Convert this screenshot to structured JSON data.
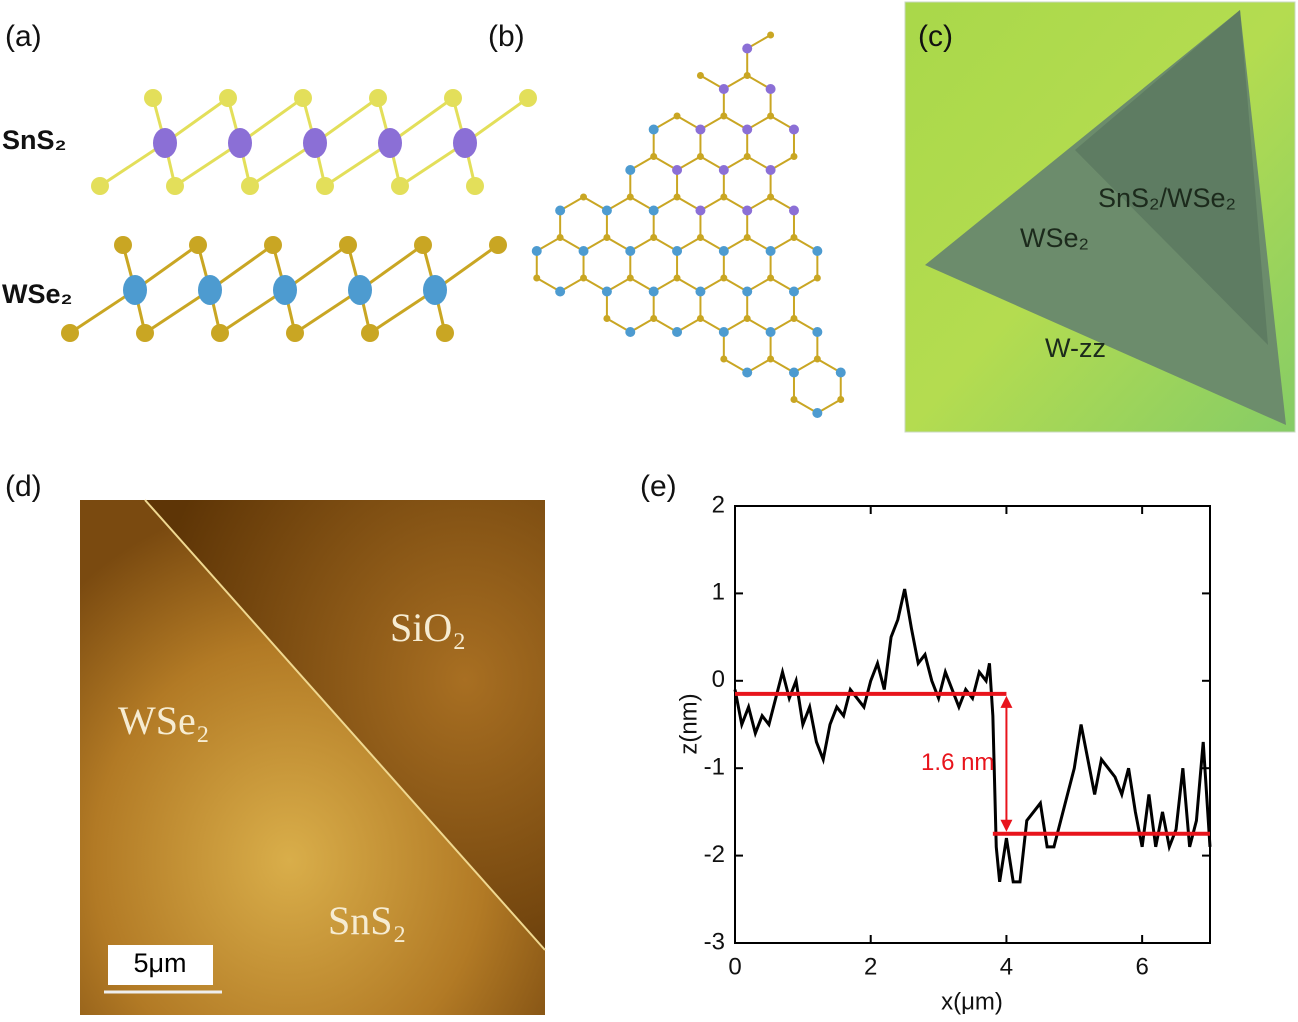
{
  "panels": {
    "a": {
      "label": "(a)",
      "top_layer": "SnS₂",
      "bottom_layer": "WSe₂"
    },
    "b": {
      "label": "(b)"
    },
    "c": {
      "label": "(c)",
      "heterostructure": "SnS₂/WSe₂",
      "monolayer": "WSe₂",
      "edge": "W-zz"
    },
    "d": {
      "label": "(d)",
      "substrate": "SiO₂",
      "left_region": "WSe₂",
      "right_region": "SnS₂",
      "scale_bar": "5μm"
    },
    "e": {
      "label": "(e)"
    }
  },
  "chart_data": {
    "type": "line",
    "color": "#000000",
    "xlabel": "x(μm)",
    "ylabel": "z(nm)",
    "x": [
      0,
      0.1,
      0.2,
      0.3,
      0.4,
      0.5,
      0.6,
      0.7,
      0.8,
      0.9,
      1.0,
      1.1,
      1.2,
      1.3,
      1.4,
      1.5,
      1.6,
      1.7,
      1.8,
      1.9,
      2.0,
      2.1,
      2.2,
      2.3,
      2.4,
      2.5,
      2.6,
      2.7,
      2.8,
      2.9,
      3.0,
      3.1,
      3.2,
      3.3,
      3.4,
      3.5,
      3.6,
      3.7,
      3.75,
      3.8,
      3.85,
      3.9,
      4.0,
      4.1,
      4.2,
      4.3,
      4.4,
      4.5,
      4.6,
      4.7,
      4.8,
      4.9,
      5.0,
      5.1,
      5.2,
      5.3,
      5.4,
      5.5,
      5.6,
      5.7,
      5.8,
      5.9,
      6.0,
      6.1,
      6.2,
      6.3,
      6.4,
      6.5,
      6.6,
      6.7,
      6.8,
      6.9,
      7.0
    ],
    "values": [
      -0.1,
      -0.5,
      -0.3,
      -0.6,
      -0.4,
      -0.5,
      -0.2,
      0.1,
      -0.2,
      0.0,
      -0.5,
      -0.3,
      -0.7,
      -0.9,
      -0.5,
      -0.3,
      -0.4,
      -0.1,
      -0.2,
      -0.3,
      0.0,
      0.2,
      -0.1,
      0.5,
      0.7,
      1.05,
      0.6,
      0.2,
      0.3,
      0.0,
      -0.2,
      0.1,
      -0.1,
      -0.3,
      -0.1,
      -0.2,
      0.1,
      0.0,
      0.2,
      -0.4,
      -1.9,
      -2.3,
      -1.8,
      -2.3,
      -2.3,
      -1.6,
      -1.5,
      -1.4,
      -1.9,
      -1.9,
      -1.6,
      -1.3,
      -1.0,
      -0.5,
      -0.9,
      -1.3,
      -0.9,
      -1.0,
      -1.1,
      -1.3,
      -1.0,
      -1.5,
      -1.9,
      -1.3,
      -1.9,
      -1.5,
      -1.9,
      -1.7,
      -1.0,
      -1.9,
      -1.6,
      -0.7,
      -1.9
    ],
    "xlim": [
      0,
      7
    ],
    "ylim": [
      -3,
      2
    ],
    "xticks": [
      0,
      2,
      4,
      6
    ],
    "yticks": [
      -3,
      -2,
      -1,
      0,
      1,
      2
    ],
    "hlines": [
      {
        "y": -0.15,
        "x": [
          0,
          4
        ],
        "color": "#e8141c"
      },
      {
        "y": -1.75,
        "x": [
          3.8,
          7
        ],
        "color": "#e8141c"
      }
    ],
    "annotation": {
      "text": "1.6 nm",
      "x": 4,
      "y_from": -0.15,
      "y_to": -1.75,
      "color": "#e8141c"
    }
  }
}
